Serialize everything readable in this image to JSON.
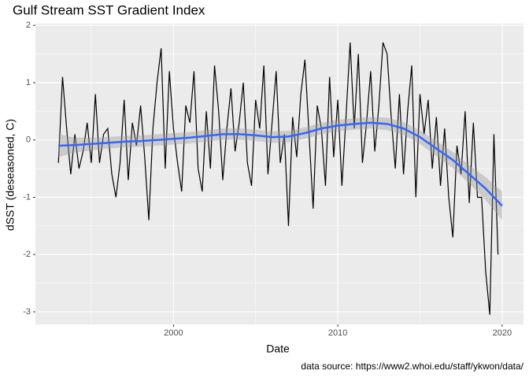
{
  "chart_data": {
    "type": "line",
    "title": "Gulf Stream SST Gradient Index",
    "x_label": "Date",
    "y_label": "dSST (deseasoned, C)",
    "caption": "data source: https://www2.whoi.edu/staff/ykwon/data/",
    "x": [
      1993,
      1993.25,
      1993.5,
      1993.75,
      1994,
      1994.25,
      1994.5,
      1994.75,
      1995,
      1995.25,
      1995.5,
      1995.75,
      1996,
      1996.25,
      1996.5,
      1996.75,
      1997,
      1997.25,
      1997.5,
      1997.75,
      1998,
      1998.25,
      1998.5,
      1998.75,
      1999,
      1999.25,
      1999.5,
      1999.75,
      2000,
      2000.25,
      2000.5,
      2000.75,
      2001,
      2001.25,
      2001.5,
      2001.75,
      2002,
      2002.25,
      2002.5,
      2002.75,
      2003,
      2003.25,
      2003.5,
      2003.75,
      2004,
      2004.25,
      2004.5,
      2004.75,
      2005,
      2005.25,
      2005.5,
      2005.75,
      2006,
      2006.25,
      2006.5,
      2006.75,
      2007,
      2007.25,
      2007.5,
      2007.75,
      2008,
      2008.25,
      2008.5,
      2008.75,
      2009,
      2009.25,
      2009.5,
      2009.75,
      2010,
      2010.25,
      2010.5,
      2010.75,
      2011,
      2011.25,
      2011.5,
      2011.75,
      2012,
      2012.25,
      2012.5,
      2012.75,
      2013,
      2013.25,
      2013.5,
      2013.75,
      2014,
      2014.25,
      2014.5,
      2014.75,
      2015,
      2015.25,
      2015.5,
      2015.75,
      2016,
      2016.25,
      2016.5,
      2016.75,
      2017,
      2017.25,
      2017.5,
      2017.75,
      2018,
      2018.25,
      2018.5,
      2018.75,
      2019,
      2019.25,
      2019.5,
      2019.75
    ],
    "series": [
      {
        "color": "#000000",
        "values": [
          -0.4,
          1.1,
          0.2,
          -0.6,
          0.1,
          -0.5,
          -0.2,
          0.3,
          -0.4,
          0.8,
          -0.4,
          0.1,
          0.2,
          -0.6,
          -1.0,
          -0.4,
          0.7,
          -0.7,
          0.3,
          -0.1,
          0.6,
          -0.3,
          -1.4,
          0.2,
          1.0,
          1.6,
          -0.5,
          1.2,
          0.2,
          -0.4,
          -0.9,
          0.6,
          0.3,
          1.2,
          -0.5,
          -0.9,
          0.5,
          -0.5,
          1.3,
          0.5,
          -0.7,
          0.2,
          0.9,
          -0.2,
          0.3,
          1.0,
          -0.4,
          -0.8,
          0.7,
          0.2,
          1.3,
          -0.6,
          0.3,
          1.2,
          -0.4,
          0.1,
          -1.5,
          0.4,
          -0.3,
          0.8,
          1.4,
          0.1,
          -1.2,
          0.6,
          0.2,
          -0.8,
          1.1,
          -0.3,
          0.7,
          -0.8,
          0.4,
          1.7,
          0.2,
          1.5,
          -0.4,
          0.3,
          1.2,
          -0.2,
          0.6,
          1.7,
          1.5,
          0.4,
          -0.5,
          0.8,
          -0.6,
          0.5,
          1.3,
          -1.0,
          0.8,
          0.1,
          0.7,
          -0.5,
          0.4,
          -0.8,
          0.2,
          -1.0,
          -1.7,
          -0.1,
          -0.6,
          0.5,
          -1.1,
          0.3,
          -1.0,
          -1.0,
          -2.3,
          -3.05,
          0.1,
          -2.0
        ]
      }
    ],
    "smooth": {
      "color": "#3366FF",
      "band_color": "#999999",
      "x": [
        1993,
        1994,
        1995,
        1996,
        1997,
        1998,
        1999,
        2000,
        2001,
        2002,
        2003,
        2004,
        2005,
        2006,
        2007,
        2008,
        2009,
        2010,
        2011,
        2012,
        2013,
        2014,
        2015,
        2016,
        2017,
        2018,
        2019,
        2020
      ],
      "values": [
        -0.1,
        -0.09,
        -0.07,
        -0.05,
        -0.03,
        -0.02,
        0.0,
        0.02,
        0.04,
        0.07,
        0.1,
        0.1,
        0.08,
        0.05,
        0.06,
        0.12,
        0.2,
        0.25,
        0.28,
        0.3,
        0.28,
        0.2,
        0.05,
        -0.15,
        -0.35,
        -0.6,
        -0.85,
        -1.15
      ],
      "lower": [
        -0.3,
        -0.22,
        -0.18,
        -0.15,
        -0.13,
        -0.12,
        -0.1,
        -0.08,
        -0.06,
        -0.03,
        0.0,
        0.0,
        -0.02,
        -0.05,
        -0.04,
        0.02,
        0.1,
        0.15,
        0.18,
        0.2,
        0.17,
        0.09,
        -0.07,
        -0.28,
        -0.49,
        -0.76,
        -1.05,
        -1.4
      ],
      "upper": [
        0.1,
        0.04,
        0.04,
        0.05,
        0.07,
        0.08,
        0.1,
        0.12,
        0.14,
        0.17,
        0.2,
        0.2,
        0.18,
        0.15,
        0.16,
        0.22,
        0.3,
        0.35,
        0.38,
        0.4,
        0.39,
        0.31,
        0.17,
        -0.02,
        -0.21,
        -0.44,
        -0.65,
        -0.9
      ]
    },
    "xlim": [
      1991.6,
      2021.3
    ],
    "ylim": [
      -3.22,
      2.03
    ],
    "xticks": [
      2000,
      2010,
      2020
    ],
    "yticks": [
      -3,
      -2,
      -1,
      0,
      1,
      2
    ],
    "x_minor_grid": [
      1995,
      2005,
      2015
    ],
    "y_minor_grid": [
      -2.5,
      -1.5,
      -0.5,
      0.5,
      1.5
    ],
    "grid": true,
    "background": "#EBEBEB"
  }
}
